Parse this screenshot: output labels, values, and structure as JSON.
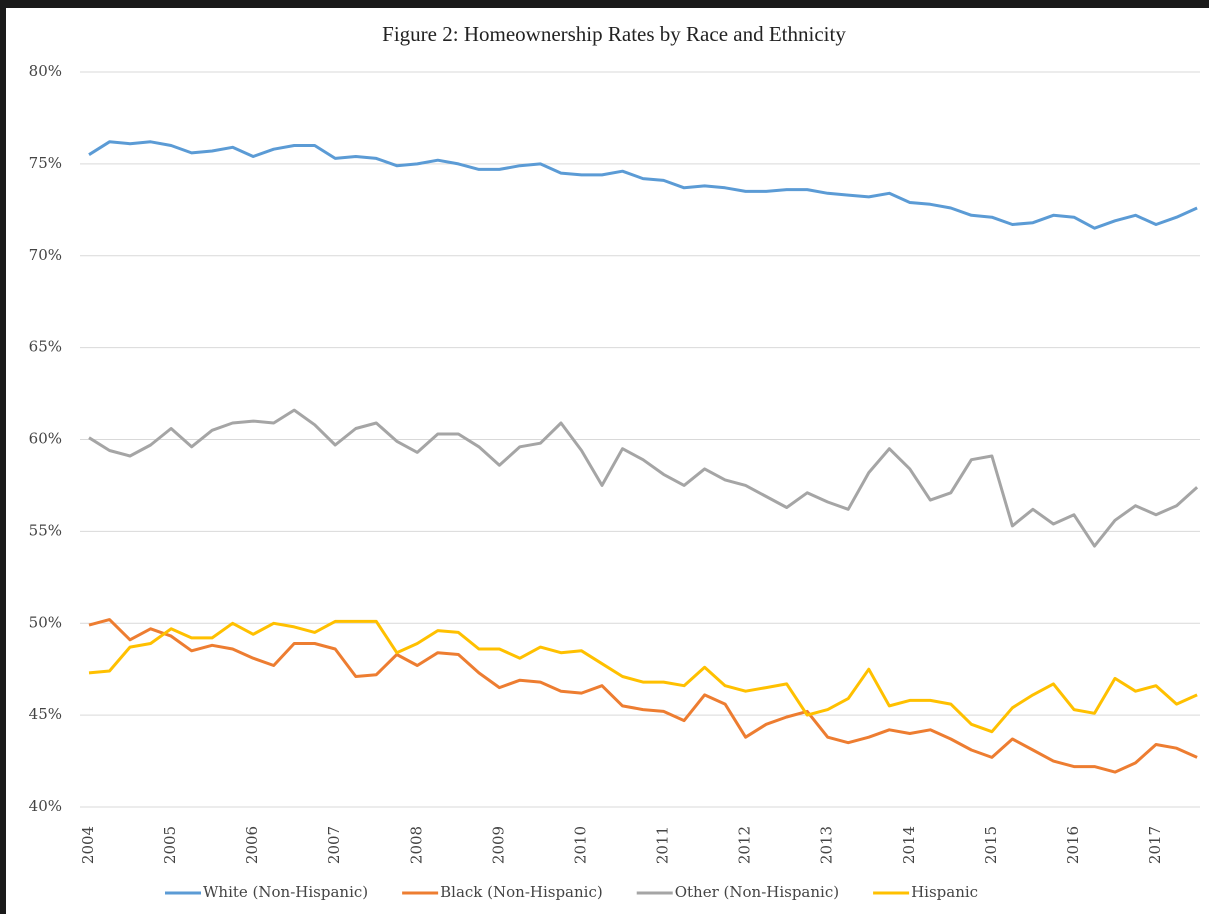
{
  "chart_data": {
    "type": "line",
    "title": "Figure 2: Homeownership Rates by Race and Ethnicity",
    "categories": [
      "2004",
      null,
      null,
      null,
      "2005",
      null,
      null,
      null,
      "2006",
      null,
      null,
      null,
      "2007",
      null,
      null,
      null,
      "2008",
      null,
      null,
      null,
      "2009",
      null,
      null,
      null,
      "2010",
      null,
      null,
      null,
      "2011",
      null,
      null,
      null,
      "2012",
      null,
      null,
      null,
      "2013",
      null,
      null,
      null,
      "2014",
      null,
      null,
      null,
      "2015",
      null,
      null,
      null,
      "2016",
      null,
      null,
      null,
      "2017",
      null,
      null
    ],
    "series": [
      {
        "name": "White (Non-Hispanic)",
        "color": "#5b9bd5",
        "values": [
          75.5,
          76.2,
          76.1,
          76.2,
          76.0,
          75.6,
          75.7,
          75.9,
          75.4,
          75.8,
          76.0,
          76.0,
          75.3,
          75.4,
          75.3,
          74.9,
          75.0,
          75.2,
          75.0,
          74.7,
          74.7,
          74.9,
          75.0,
          74.5,
          74.4,
          74.4,
          74.6,
          74.2,
          74.1,
          73.7,
          73.8,
          73.7,
          73.5,
          73.5,
          73.6,
          73.6,
          73.4,
          73.3,
          73.2,
          73.4,
          72.9,
          72.8,
          72.6,
          72.2,
          72.1,
          71.7,
          71.8,
          72.2,
          72.1,
          71.5,
          71.9,
          72.2,
          71.7,
          72.1,
          72.6
        ]
      },
      {
        "name": "Black (Non-Hispanic)",
        "color": "#ed7d31",
        "values": [
          49.9,
          50.2,
          49.1,
          49.7,
          49.3,
          48.5,
          48.8,
          48.6,
          48.1,
          47.7,
          48.9,
          48.9,
          48.6,
          47.1,
          47.2,
          48.3,
          47.7,
          48.4,
          48.3,
          47.3,
          46.5,
          46.9,
          46.8,
          46.3,
          46.2,
          46.6,
          45.5,
          45.3,
          45.2,
          44.7,
          46.1,
          45.6,
          43.8,
          44.5,
          44.9,
          45.2,
          43.8,
          43.5,
          43.8,
          44.2,
          44.0,
          44.2,
          43.7,
          43.1,
          42.7,
          43.7,
          43.1,
          42.5,
          42.2,
          42.2,
          41.9,
          42.4,
          43.4,
          43.2,
          42.7
        ]
      },
      {
        "name": "Other (Non-Hispanic)",
        "color": "#a5a5a5",
        "values": [
          60.1,
          59.4,
          59.1,
          59.7,
          60.6,
          59.6,
          60.5,
          60.9,
          61.0,
          60.9,
          61.6,
          60.8,
          59.7,
          60.6,
          60.9,
          59.9,
          59.3,
          60.3,
          60.3,
          59.6,
          58.6,
          59.6,
          59.8,
          60.9,
          59.4,
          57.5,
          59.5,
          58.9,
          58.1,
          57.5,
          58.4,
          57.8,
          57.5,
          56.9,
          56.3,
          57.1,
          56.6,
          56.2,
          58.2,
          59.5,
          58.4,
          56.7,
          57.1,
          58.9,
          59.1,
          55.3,
          56.2,
          55.4,
          55.9,
          54.2,
          55.6,
          56.4,
          55.9,
          56.4,
          57.4
        ]
      },
      {
        "name": "Hispanic",
        "color": "#ffc000",
        "values": [
          47.3,
          47.4,
          48.7,
          48.9,
          49.7,
          49.2,
          49.2,
          50.0,
          49.4,
          50.0,
          49.8,
          49.5,
          50.1,
          50.1,
          50.1,
          48.4,
          48.9,
          49.6,
          49.5,
          48.6,
          48.6,
          48.1,
          48.7,
          48.4,
          48.5,
          47.8,
          47.1,
          46.8,
          46.8,
          46.6,
          47.6,
          46.6,
          46.3,
          46.5,
          46.7,
          45.0,
          45.3,
          45.9,
          47.5,
          45.5,
          45.8,
          45.8,
          45.6,
          44.5,
          44.1,
          45.4,
          46.1,
          46.7,
          45.3,
          45.1,
          47.0,
          46.3,
          46.6,
          45.6,
          46.1
        ]
      }
    ],
    "ylim": [
      40,
      80
    ],
    "yticks": [
      {
        "value": 40,
        "label": "40%"
      },
      {
        "value": 45,
        "label": "45%"
      },
      {
        "value": 50,
        "label": "50%"
      },
      {
        "value": 55,
        "label": "55%"
      },
      {
        "value": 60,
        "label": "60%"
      },
      {
        "value": 65,
        "label": "65%"
      },
      {
        "value": 70,
        "label": "70%"
      },
      {
        "value": 75,
        "label": "75%"
      },
      {
        "value": 80,
        "label": "80%"
      }
    ],
    "grid": true,
    "legend": "bottom"
  }
}
